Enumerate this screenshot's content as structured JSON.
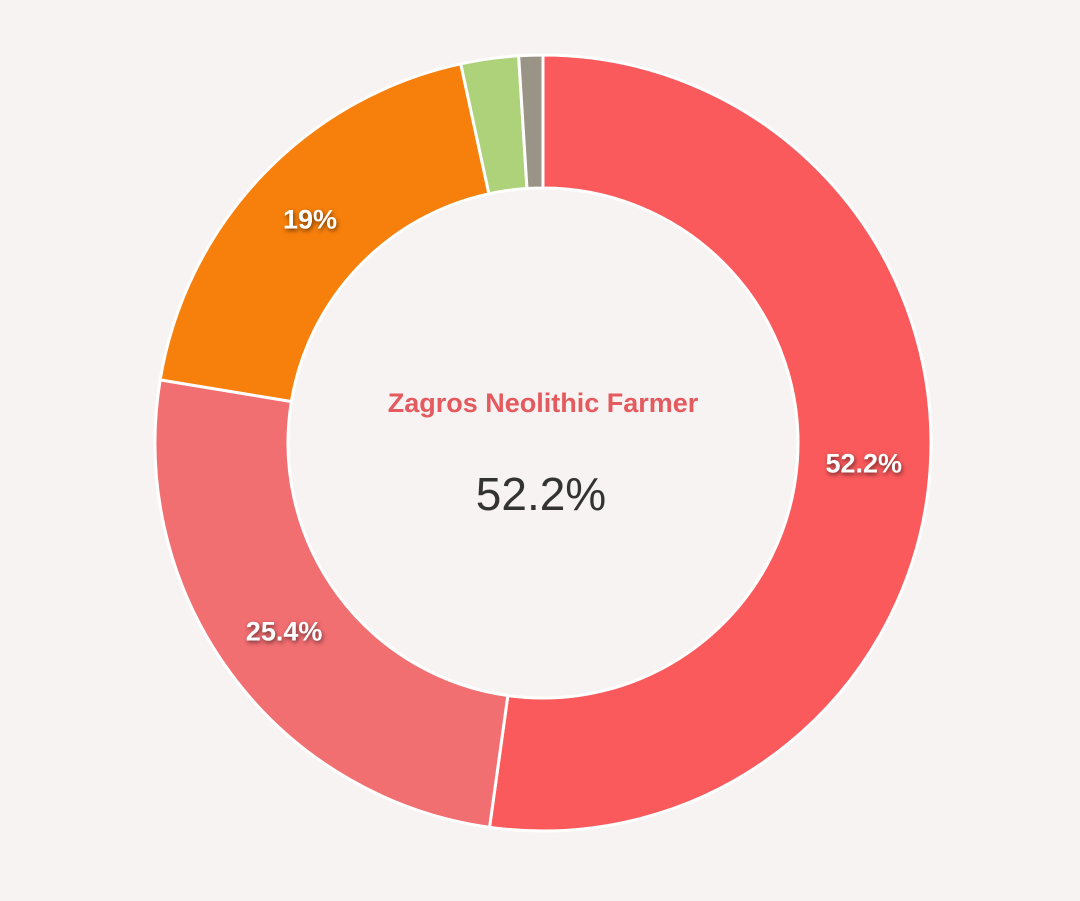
{
  "chart_data": {
    "type": "donut",
    "categories": [
      "Zagros Neolithic Farmer",
      null,
      null,
      null,
      null
    ],
    "values": [
      52.2,
      25.4,
      19,
      2.4,
      1.0
    ],
    "value_labels": [
      "52.2%",
      "25.4%",
      "19%",
      null,
      null
    ],
    "colors": [
      "#fa5a5c",
      "#f16e71",
      "#f77f0b",
      "#aed27a",
      "#9a9486"
    ]
  }
}
